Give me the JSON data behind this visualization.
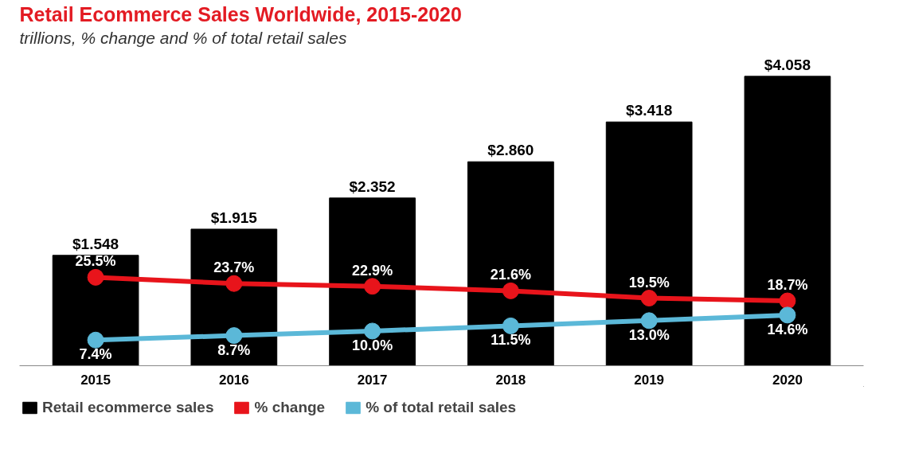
{
  "chart_data": {
    "type": "bar",
    "title": "Retail Ecommerce Sales Worldwide, 2015-2020",
    "subtitle": "trillions, % change and % of total retail sales",
    "categories": [
      "2015",
      "2016",
      "2017",
      "2018",
      "2019",
      "2020"
    ],
    "series": [
      {
        "name": "Retail ecommerce sales",
        "color": "#000000",
        "values": [
          1.548,
          1.915,
          2.352,
          2.86,
          3.418,
          4.058
        ],
        "value_labels": [
          "$1.548",
          "$1.915",
          "$2.352",
          "$2.860",
          "$3.418",
          "$4.058"
        ]
      },
      {
        "name": "% change",
        "type": "line",
        "axis": "y2",
        "color": "#e8141b",
        "values": [
          25.5,
          23.7,
          22.9,
          21.6,
          19.5,
          18.7
        ],
        "value_labels": [
          "25.5%",
          "23.7%",
          "22.9%",
          "21.6%",
          "19.5%",
          "18.7%"
        ]
      },
      {
        "name": "% of total retail sales",
        "type": "line",
        "axis": "y2",
        "color": "#5bb8d8",
        "values": [
          7.4,
          8.7,
          10.0,
          11.5,
          13.0,
          14.6
        ],
        "value_labels": [
          "7.4%",
          "8.7%",
          "10.0%",
          "11.5%",
          "13.0%",
          "14.6%"
        ]
      }
    ],
    "tick_labels": "x",
    "legend": "bottom",
    "marker": "circle",
    "line_style": "solid"
  }
}
